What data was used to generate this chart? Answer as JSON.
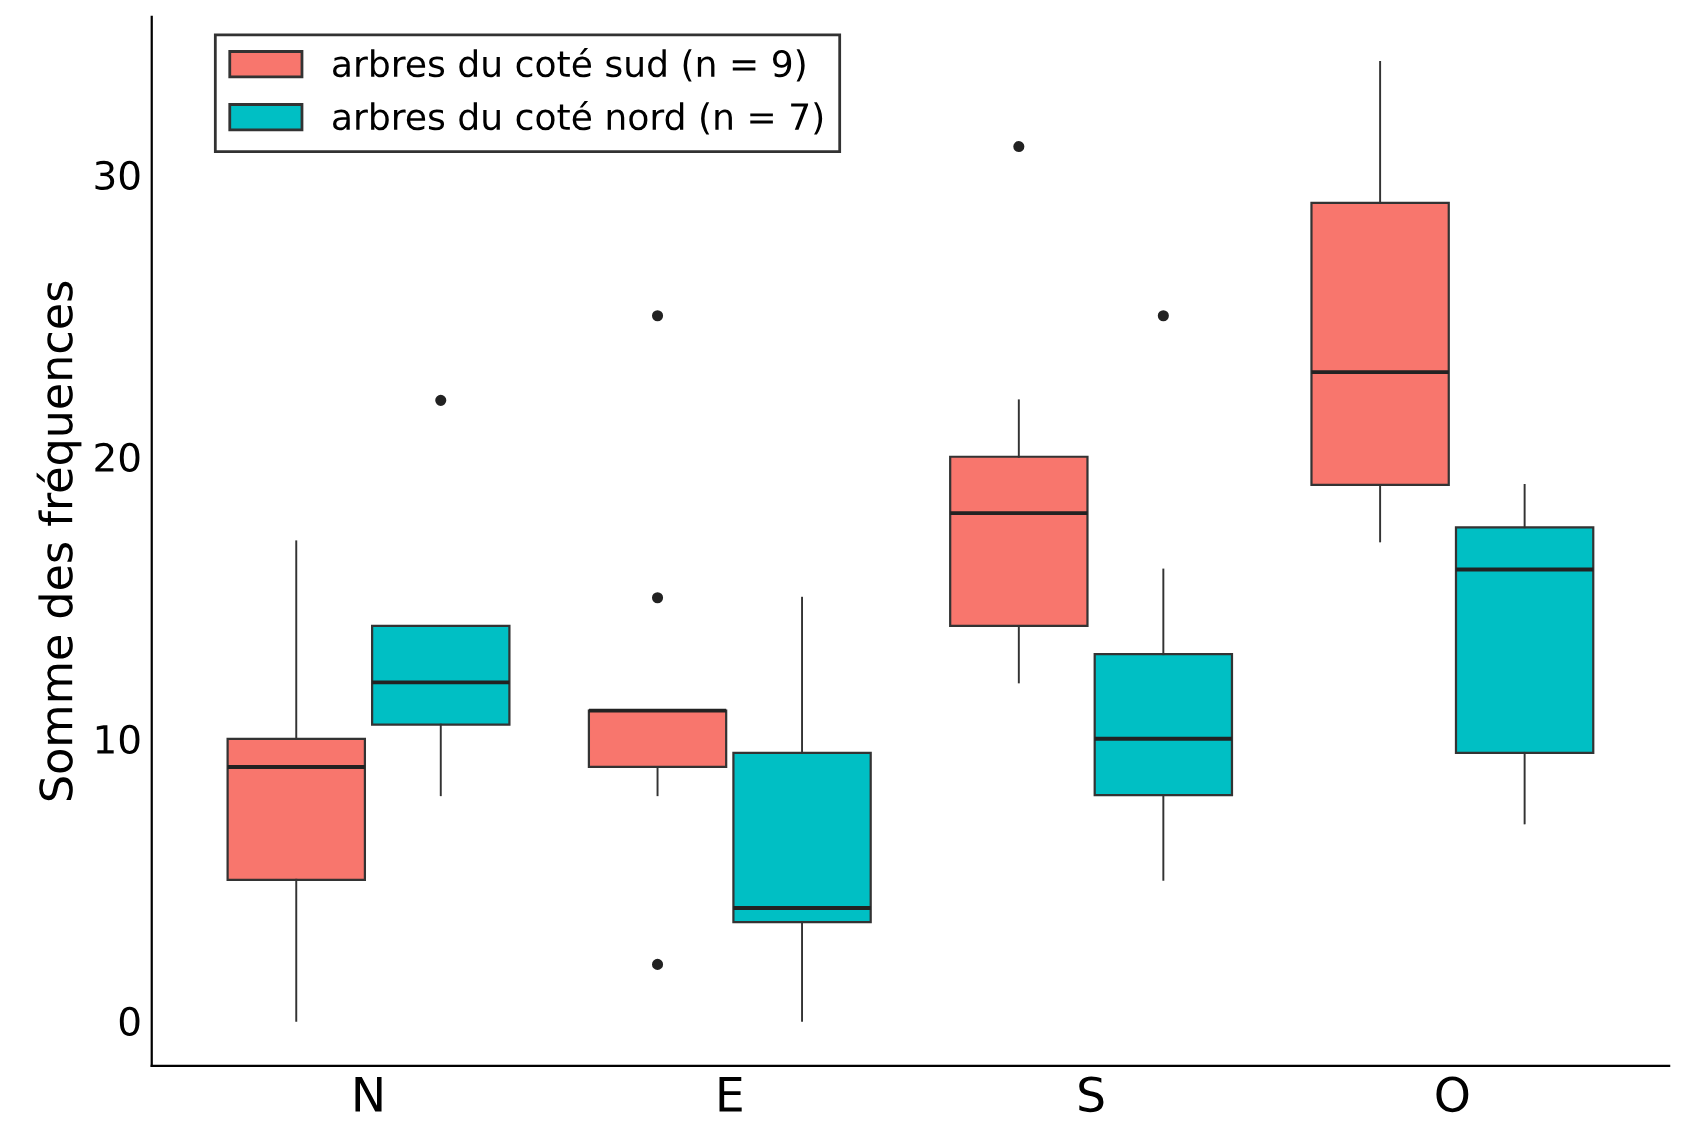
{
  "chart_data": {
    "type": "box",
    "ylabel": "Somme des fréquences",
    "categories": [
      "N",
      "E",
      "S",
      "O"
    ],
    "ylim": [
      -1.6,
      35.6
    ],
    "yticks": [
      0,
      10,
      20,
      30
    ],
    "grid": false,
    "legend": "top left",
    "series": [
      {
        "name": "arbres du coté sud (n = 9)",
        "color": "#f8766d",
        "boxes": [
          {
            "low": 0,
            "q1": 5,
            "median": 9,
            "q3": 10,
            "high": 17
          },
          {
            "low": 8,
            "q1": 9,
            "median": 11,
            "q3": 11,
            "high": 11,
            "outliers": [
              25,
              15,
              2
            ]
          },
          {
            "low": 12,
            "q1": 14,
            "median": 18,
            "q3": 20,
            "high": 22,
            "outliers": [
              31
            ]
          },
          {
            "low": 17,
            "q1": 19,
            "median": 23,
            "q3": 29,
            "high": 34
          }
        ]
      },
      {
        "name": "arbres du coté nord (n = 7)",
        "color": "#00bfc4",
        "boxes": [
          {
            "low": 8,
            "q1": 10.5,
            "median": 12,
            "q3": 14,
            "high": 14,
            "outliers": [
              22
            ]
          },
          {
            "low": 0,
            "q1": 3.5,
            "median": 4,
            "q3": 9.5,
            "high": 15
          },
          {
            "low": 5,
            "q1": 8,
            "median": 10,
            "q3": 13,
            "high": 16,
            "outliers": [
              25
            ]
          },
          {
            "low": 7,
            "q1": 9.5,
            "median": 16,
            "q3": 17.5,
            "high": 19
          }
        ]
      }
    ]
  }
}
